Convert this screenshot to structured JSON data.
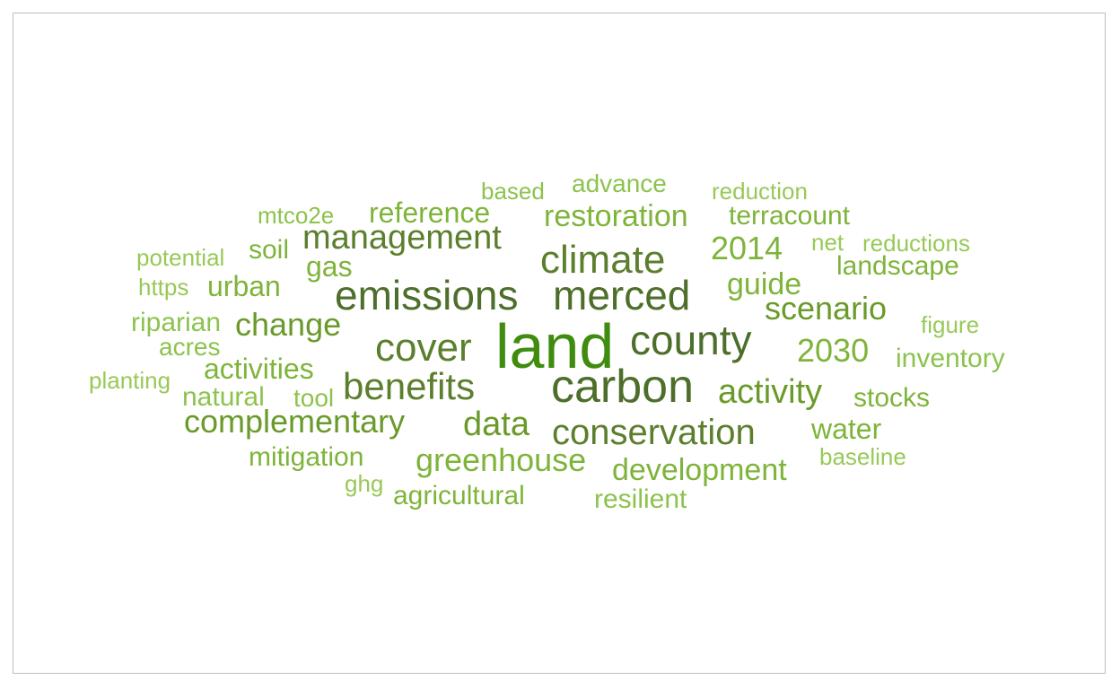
{
  "palette": {
    "c1": "#3f8c0f",
    "c2": "#4e6f2b",
    "c3": "#5c7f2e",
    "c4": "#6a9a2a",
    "c5": "#7eb43a",
    "c6": "#8cc34d",
    "c7": "#98c957"
  },
  "words": [
    {
      "text": "land",
      "color": "#3f8c0f"
    },
    {
      "text": "carbon",
      "color": "#4e6f2b"
    },
    {
      "text": "county",
      "color": "#4e6f2b"
    },
    {
      "text": "merced",
      "color": "#4e6f2b"
    },
    {
      "text": "emissions",
      "color": "#4e6f2b"
    },
    {
      "text": "cover",
      "color": "#5c7f2e"
    },
    {
      "text": "climate",
      "color": "#5c7f2e"
    },
    {
      "text": "benefits",
      "color": "#5c7f2e"
    },
    {
      "text": "conservation",
      "color": "#5c7f2e"
    },
    {
      "text": "management",
      "color": "#5c7f2e"
    },
    {
      "text": "activity",
      "color": "#6a9a2a"
    },
    {
      "text": "data",
      "color": "#6a9a2a"
    },
    {
      "text": "scenario",
      "color": "#6a9a2a"
    },
    {
      "text": "complementary",
      "color": "#6a9a2a"
    },
    {
      "text": "change",
      "color": "#6a9a2a"
    },
    {
      "text": "2030",
      "color": "#7eb43a"
    },
    {
      "text": "2014",
      "color": "#7eb43a"
    },
    {
      "text": "greenhouse",
      "color": "#7eb43a"
    },
    {
      "text": "development",
      "color": "#7eb43a"
    },
    {
      "text": "restoration",
      "color": "#7eb43a"
    },
    {
      "text": "reference",
      "color": "#7eb43a"
    },
    {
      "text": "guide",
      "color": "#7eb43a"
    },
    {
      "text": "activities",
      "color": "#7eb43a"
    },
    {
      "text": "terracount",
      "color": "#7eb43a"
    },
    {
      "text": "landscape",
      "color": "#7eb43a"
    },
    {
      "text": "stocks",
      "color": "#7eb43a"
    },
    {
      "text": "water",
      "color": "#7eb43a"
    },
    {
      "text": "inventory",
      "color": "#8cc34d"
    },
    {
      "text": "urban",
      "color": "#7eb43a"
    },
    {
      "text": "gas",
      "color": "#7eb43a"
    },
    {
      "text": "mitigation",
      "color": "#7eb43a"
    },
    {
      "text": "agricultural",
      "color": "#7eb43a"
    },
    {
      "text": "natural",
      "color": "#8cc34d"
    },
    {
      "text": "soil",
      "color": "#7eb43a"
    },
    {
      "text": "riparian",
      "color": "#8cc34d"
    },
    {
      "text": "tool",
      "color": "#8cc34d"
    },
    {
      "text": "resilient",
      "color": "#8cc34d"
    },
    {
      "text": "advance",
      "color": "#8cc34d"
    },
    {
      "text": "based",
      "color": "#8cc34d"
    },
    {
      "text": "mtco2e",
      "color": "#8cc34d"
    },
    {
      "text": "reduction",
      "color": "#98c957"
    },
    {
      "text": "acres",
      "color": "#8cc34d"
    },
    {
      "text": "potential",
      "color": "#98c957"
    },
    {
      "text": "https",
      "color": "#98c957"
    },
    {
      "text": "baseline",
      "color": "#98c957"
    },
    {
      "text": "figure",
      "color": "#98c957"
    },
    {
      "text": "reductions",
      "color": "#98c957"
    },
    {
      "text": "net",
      "color": "#98c957"
    },
    {
      "text": "planting",
      "color": "#98c957"
    },
    {
      "text": "ghg",
      "color": "#98c957"
    }
  ]
}
